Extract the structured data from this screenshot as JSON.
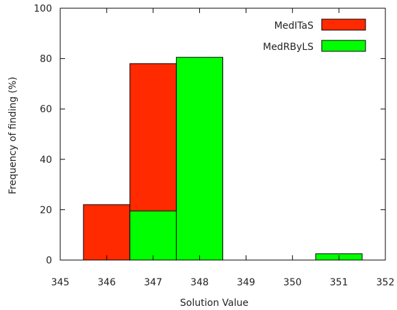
{
  "chart_data": {
    "type": "bar",
    "title": "",
    "xlabel": "Solution Value",
    "ylabel": "Frequency of finding (%)",
    "xlim": [
      345,
      352
    ],
    "ylim": [
      0,
      100
    ],
    "xticks": [
      "345",
      "346",
      "347",
      "348",
      "349",
      "350",
      "351",
      "352"
    ],
    "yticks": [
      "0",
      "20",
      "40",
      "60",
      "80",
      "100"
    ],
    "grid": false,
    "legend_position": "top-right",
    "series": [
      {
        "name": "MedITaS",
        "color": "#ff2a00",
        "x": [
          346,
          347
        ],
        "values": [
          22,
          78
        ]
      },
      {
        "name": "MedRByLS",
        "color": "#00ff00",
        "x": [
          347,
          348,
          351
        ],
        "values": [
          19.5,
          80.5,
          2.5
        ]
      }
    ]
  }
}
